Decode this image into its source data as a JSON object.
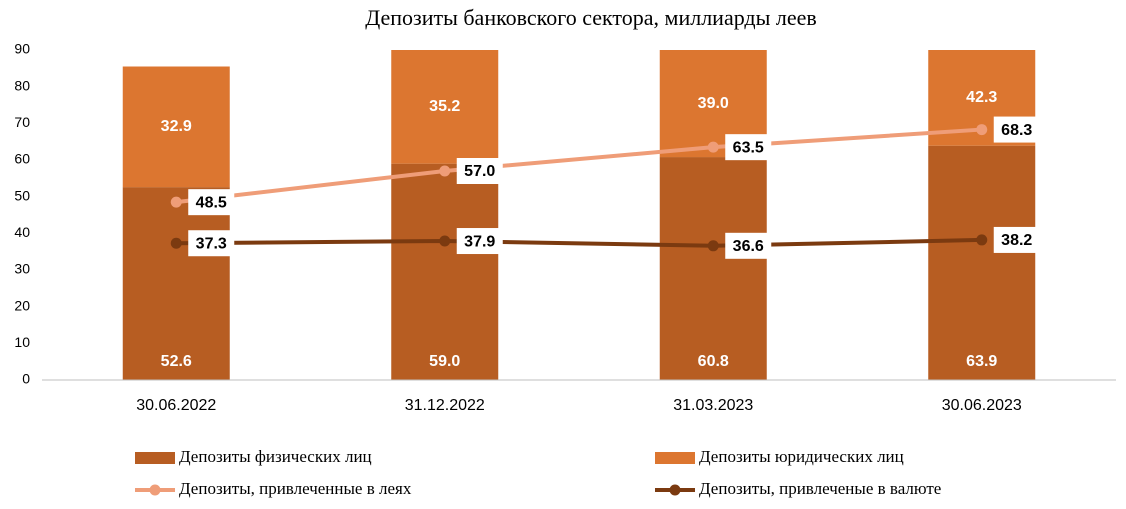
{
  "chart_data": {
    "type": "bar",
    "title": "Депозиты банковского сектора, миллиарды леев",
    "categories": [
      "30.06.2022",
      "31.12.2022",
      "31.03.2023",
      "30.06.2023"
    ],
    "ylim": [
      0,
      90
    ],
    "yticks": [
      0,
      10,
      20,
      30,
      40,
      50,
      60,
      70,
      80,
      90
    ],
    "grid": false,
    "series": [
      {
        "name": "Депозиты физических лиц",
        "type": "bar",
        "stacked": true,
        "color": "#b75d22",
        "values": [
          52.6,
          59.0,
          60.8,
          63.9
        ],
        "value_labels": [
          "52.6",
          "59.0",
          "60.8",
          "63.9"
        ]
      },
      {
        "name": "Депозиты юридических лиц",
        "type": "bar",
        "stacked": true,
        "color": "#dc7630",
        "values": [
          32.9,
          35.2,
          39.0,
          42.3
        ],
        "value_labels": [
          "32.9",
          "35.2",
          "39.0",
          "42.3"
        ]
      },
      {
        "name": "Депозиты, привлеченные в леях",
        "type": "line",
        "color": "#ef9d78",
        "values": [
          48.5,
          57.0,
          63.5,
          68.3
        ],
        "value_labels": [
          "48.5",
          "57.0",
          "63.5",
          "68.3"
        ]
      },
      {
        "name": "Депозиты, привлеченые в валюте",
        "type": "line",
        "color": "#7b3a10",
        "values": [
          37.3,
          37.9,
          36.6,
          38.2
        ],
        "value_labels": [
          "37.3",
          "37.9",
          "36.6",
          "38.2"
        ]
      }
    ]
  }
}
